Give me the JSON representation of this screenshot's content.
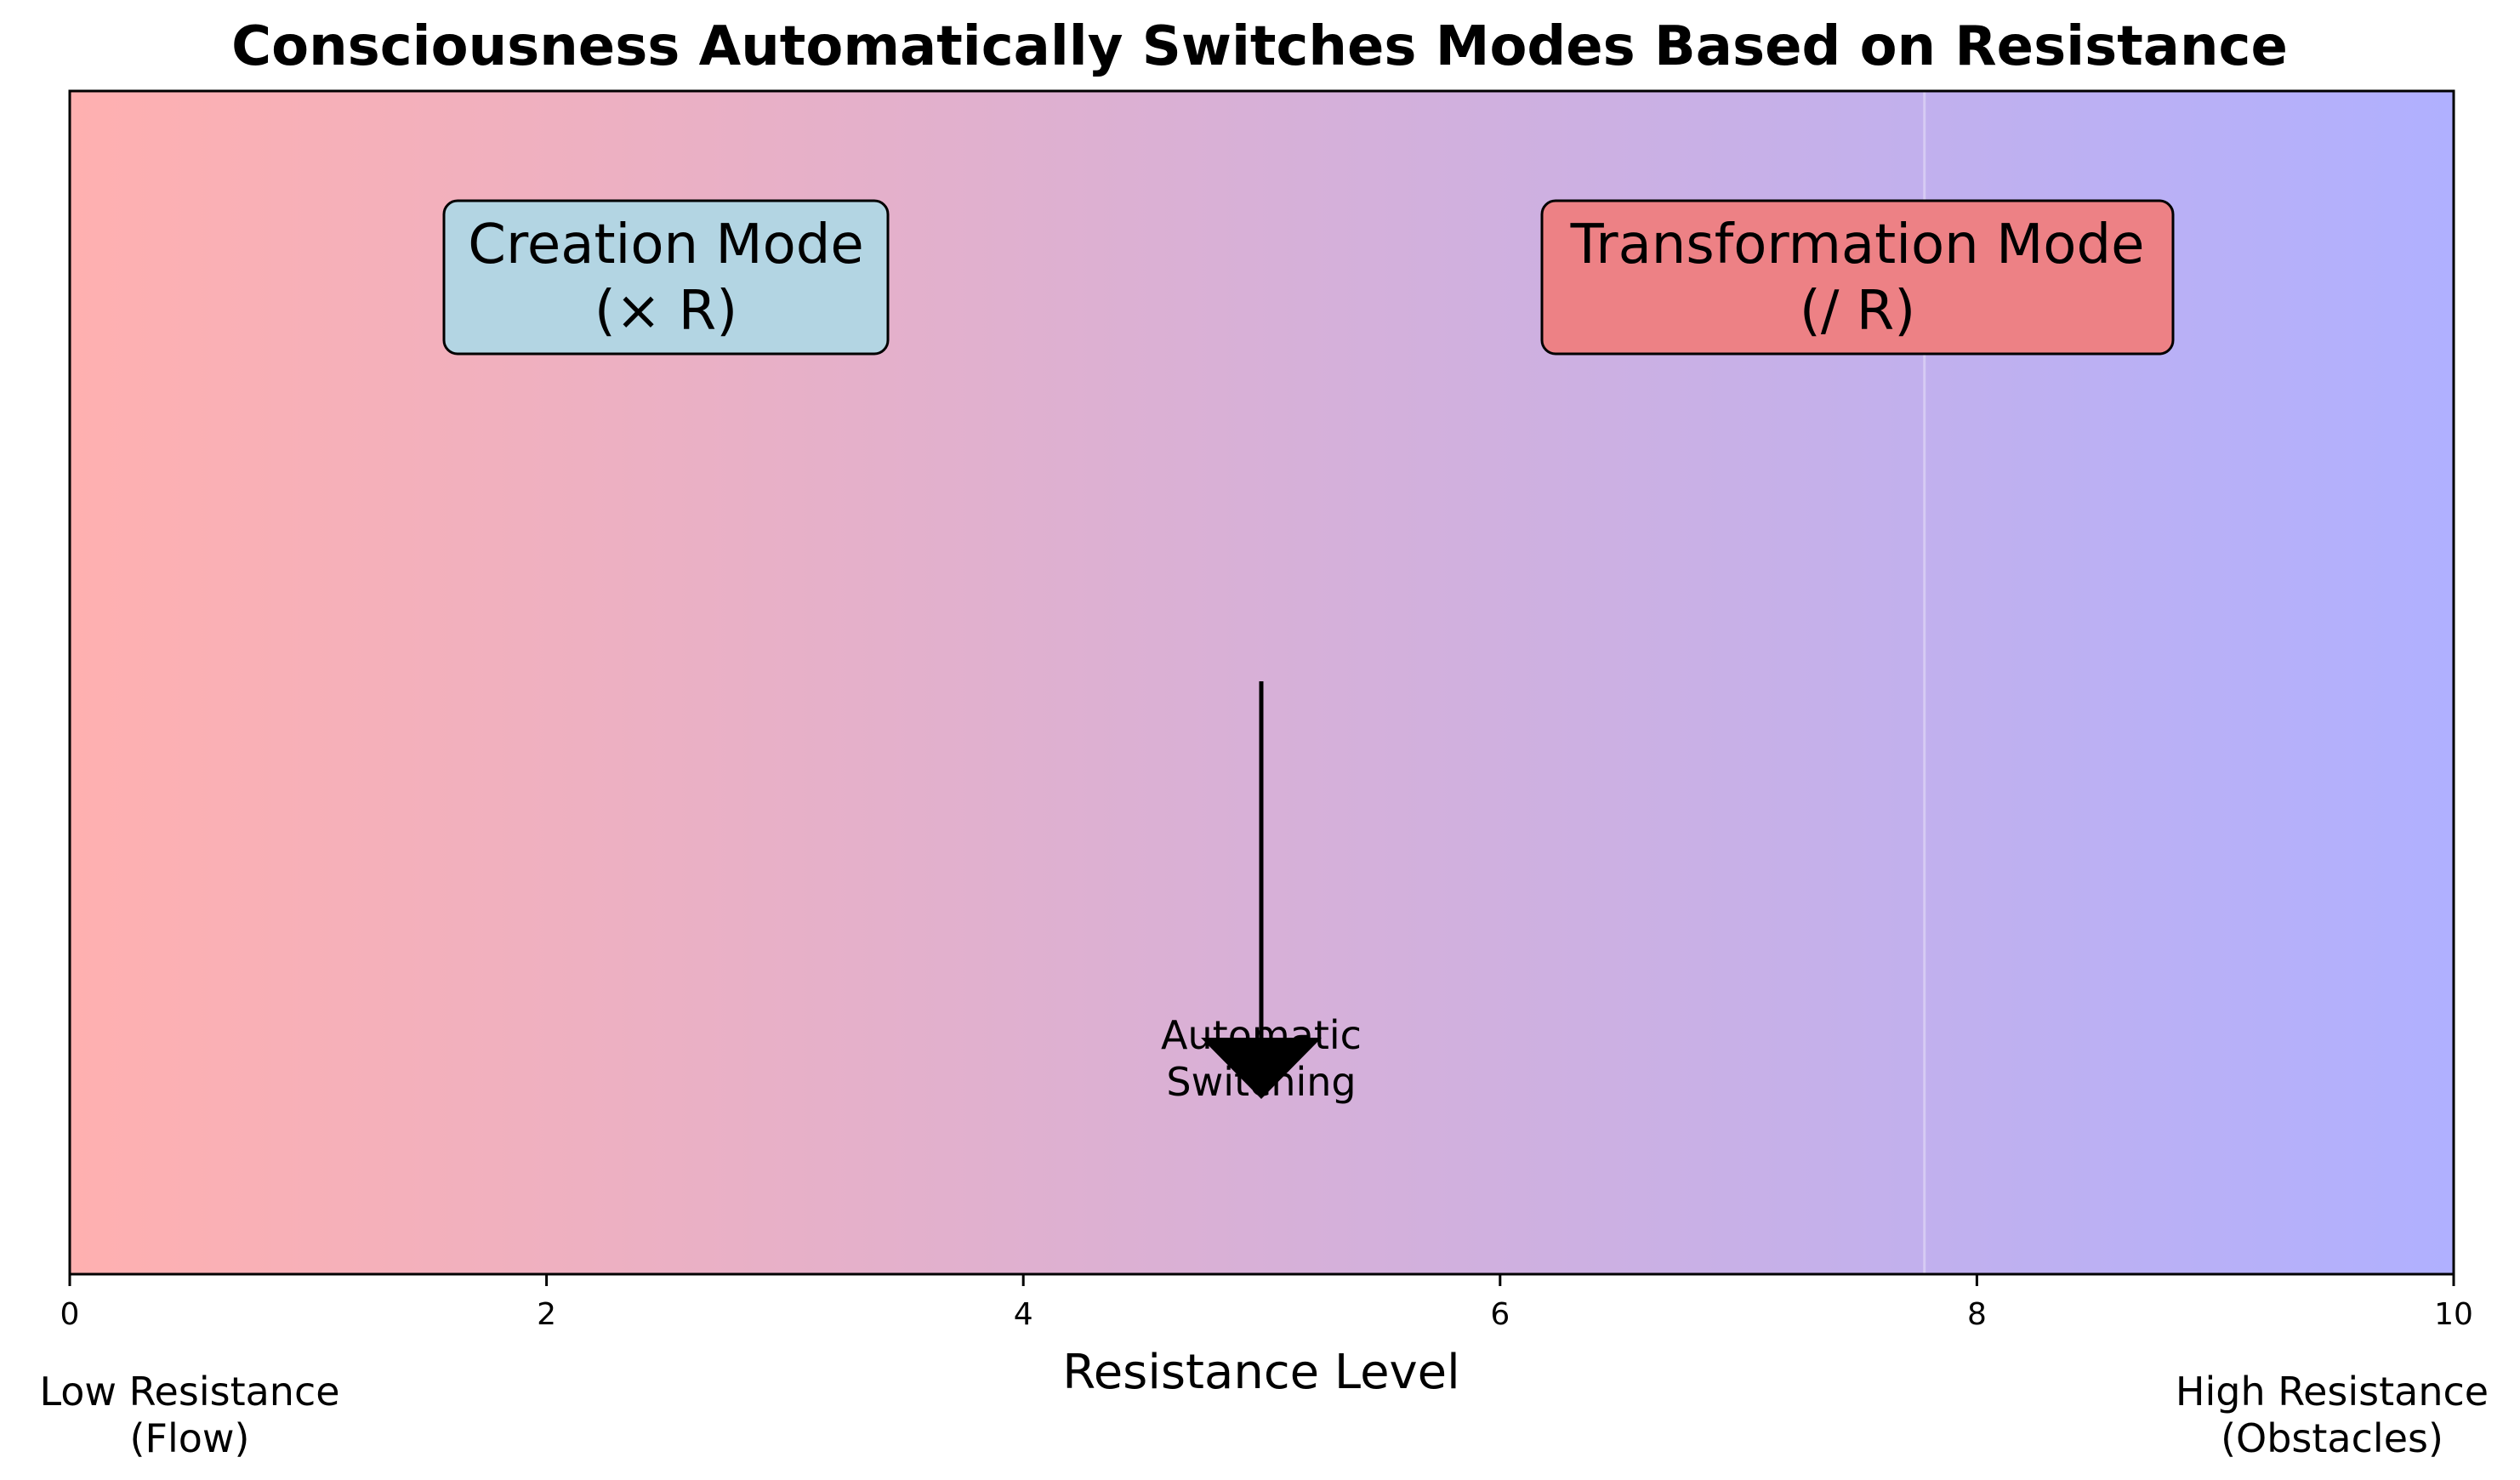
{
  "title": "Consciousness Automatically Switches Modes Based on Resistance",
  "axis": {
    "xlabel": "Resistance Level",
    "xlim": [
      0,
      10
    ],
    "ticks": [
      "0",
      "2",
      "4",
      "6",
      "8",
      "10"
    ],
    "y_ticks_visible": false
  },
  "gradient": {
    "start_color": "#ffb0b0",
    "end_color": "#b0b0ff",
    "faint_line_at": 7.78
  },
  "modes": {
    "creation": {
      "line1": "Creation Mode",
      "line2": "(× R)",
      "fill": "#b3d5e3",
      "center_x": 2.5
    },
    "transformation": {
      "line1": "Transformation Mode",
      "line2": "(/ R)",
      "fill": "#ed8185",
      "center_x": 7.5
    }
  },
  "switch": {
    "line1": "Automatic",
    "line2": "Switching",
    "x": 5
  },
  "ends": {
    "low": {
      "line1": "Low Resistance",
      "line2": "(Flow)"
    },
    "high": {
      "line1": "High Resistance",
      "line2": "(Obstacles)"
    }
  }
}
